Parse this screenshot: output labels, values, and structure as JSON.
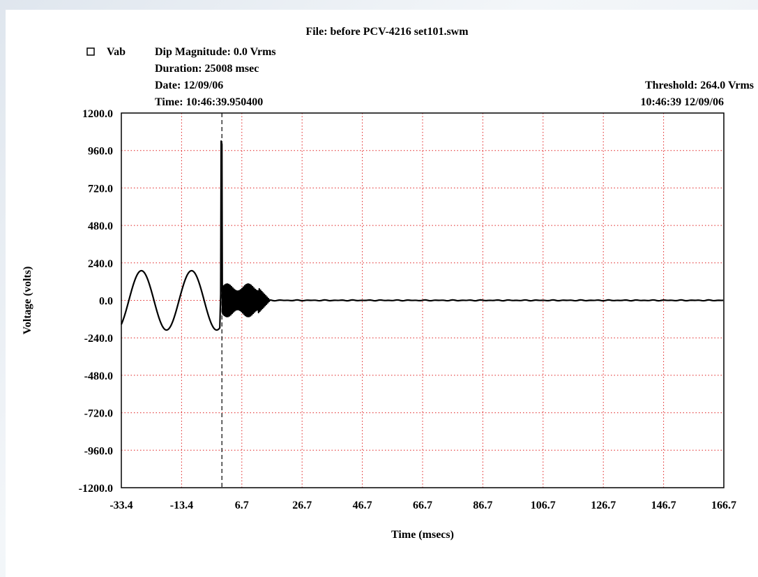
{
  "header": {
    "file": "File: before PCV-4216 set101.swm",
    "dip_magnitude": "Dip Magnitude: 0.0 Vrms",
    "duration": "Duration: 25008 msec",
    "date": "Date: 12/09/06",
    "time": "Time: 10:46:39.950400",
    "threshold": "Threshold: 264.0 Vrms",
    "timestamp": "10:46:39 12/09/06"
  },
  "chart_data": {
    "type": "line",
    "xlabel": "Time (msecs)",
    "ylabel": "Voltage (volts)",
    "xlim": [
      -33.4,
      166.7
    ],
    "ylim": [
      -1200,
      1200
    ],
    "x_ticks": [
      "-33.4",
      "-13.4",
      "6.7",
      "26.7",
      "46.7",
      "66.7",
      "86.7",
      "106.7",
      "126.7",
      "146.7",
      "166.7"
    ],
    "y_ticks": [
      "1200.0",
      "960.0",
      "720.0",
      "480.0",
      "240.0",
      "0.0",
      "-240.0",
      "-480.0",
      "-720.0",
      "-960.0",
      "-1200.0"
    ],
    "grid": true,
    "trigger_time": 0,
    "legend": "top-left",
    "series": [
      {
        "name": "Vab",
        "color": "#000000",
        "description_points": {
          "x": [
            -33.4,
            -29.2,
            -25.0,
            -20.8,
            -16.7,
            -12.5,
            -8.3,
            -4.2,
            -0.6,
            -0.4,
            -0.2,
            0.0,
            0.3,
            1.0,
            2.0,
            3.0,
            4.0,
            5.0,
            6.0,
            7.0,
            8.0,
            9.0,
            10.0,
            11.0,
            12.0,
            13.0,
            14.0,
            15.0,
            16.0,
            20.0,
            40.0,
            80.0,
            120.0,
            166.7
          ],
          "y": [
            -45,
            190,
            30,
            -180,
            -40,
            190,
            30,
            -185,
            -150,
            40,
            1020,
            980,
            -60,
            90,
            -70,
            100,
            -80,
            110,
            -90,
            115,
            -100,
            105,
            -110,
            100,
            -105,
            95,
            -80,
            40,
            5,
            0,
            0,
            0,
            0,
            0
          ]
        }
      }
    ]
  }
}
